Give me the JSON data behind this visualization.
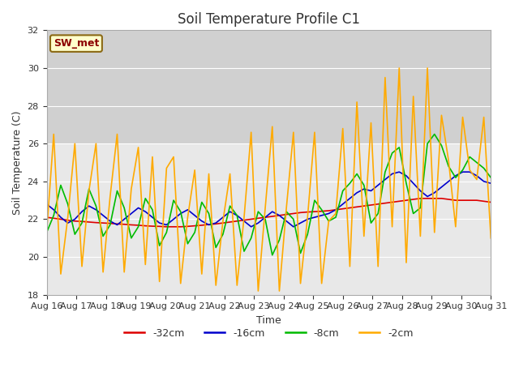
{
  "title": "Soil Temperature Profile C1",
  "xlabel": "Time",
  "ylabel": "Soil Temperature (C)",
  "ylim": [
    18,
    32
  ],
  "yticks": [
    18,
    20,
    22,
    24,
    26,
    28,
    30,
    32
  ],
  "legend_label": "SW_met",
  "series_labels": [
    "-32cm",
    "-16cm",
    "-8cm",
    "-2cm"
  ],
  "series_colors": [
    "#dd0000",
    "#0000cc",
    "#00bb00",
    "#ffaa00"
  ],
  "fig_bg_color": "#ffffff",
  "plot_bg_color": "#e8e8e8",
  "shade_band_color": "#d0d0d0",
  "shade_band_lo": 26,
  "shade_band_hi": 32,
  "title_fontsize": 12,
  "axis_fontsize": 9,
  "tick_fontsize": 8,
  "x_labels": [
    "Aug 16",
    "Aug 17",
    "Aug 18",
    "Aug 19",
    "Aug 20",
    "Aug 21",
    "Aug 22",
    "Aug 23",
    "Aug 24",
    "Aug 25",
    "Aug 26",
    "Aug 27",
    "Aug 28",
    "Aug 29",
    "Aug 30",
    "Aug 31"
  ],
  "t_d32": [
    22.1,
    22.05,
    22.0,
    21.95,
    21.9,
    21.88,
    21.85,
    21.82,
    21.8,
    21.78,
    21.75,
    21.73,
    21.7,
    21.68,
    21.65,
    21.63,
    21.62,
    21.6,
    21.6,
    21.6,
    21.62,
    21.65,
    21.68,
    21.72,
    21.75,
    21.8,
    21.85,
    21.9,
    21.95,
    22.0,
    22.05,
    22.1,
    22.15,
    22.2,
    22.25,
    22.3,
    22.35,
    22.38,
    22.4,
    22.42,
    22.45,
    22.5,
    22.55,
    22.6,
    22.65,
    22.7,
    22.75,
    22.8,
    22.85,
    22.9,
    22.95,
    23.0,
    23.05,
    23.1,
    23.1,
    23.1,
    23.1,
    23.05,
    23.0,
    23.0,
    23.0,
    23.0,
    22.95,
    22.9
  ],
  "t_d16": [
    22.8,
    22.5,
    22.1,
    21.8,
    22.0,
    22.4,
    22.7,
    22.5,
    22.2,
    21.9,
    21.7,
    22.0,
    22.3,
    22.6,
    22.4,
    22.1,
    21.8,
    21.7,
    22.0,
    22.3,
    22.5,
    22.2,
    21.9,
    21.7,
    21.8,
    22.1,
    22.4,
    22.2,
    21.9,
    21.6,
    21.8,
    22.1,
    22.4,
    22.2,
    21.9,
    21.6,
    21.8,
    22.0,
    22.1,
    22.2,
    22.3,
    22.5,
    22.8,
    23.1,
    23.4,
    23.6,
    23.5,
    23.8,
    24.1,
    24.4,
    24.5,
    24.3,
    23.9,
    23.5,
    23.2,
    23.4,
    23.7,
    24.0,
    24.3,
    24.5,
    24.5,
    24.3,
    24.0,
    23.9
  ],
  "t_d8": [
    21.3,
    22.2,
    23.8,
    22.8,
    21.2,
    21.8,
    23.6,
    22.7,
    21.1,
    21.7,
    23.5,
    22.6,
    21.0,
    21.6,
    23.1,
    22.5,
    20.6,
    21.3,
    23.0,
    22.4,
    20.7,
    21.3,
    22.9,
    22.3,
    20.5,
    21.2,
    22.7,
    22.2,
    20.3,
    21.0,
    22.4,
    22.0,
    20.1,
    20.9,
    22.4,
    22.0,
    20.2,
    21.2,
    23.0,
    22.5,
    21.9,
    22.1,
    23.5,
    23.9,
    24.4,
    23.8,
    21.8,
    22.3,
    24.5,
    25.5,
    25.8,
    23.9,
    22.3,
    22.6,
    26.0,
    26.5,
    25.9,
    24.8,
    24.2,
    24.6,
    25.3,
    25.0,
    24.7,
    24.2
  ],
  "t_d2": [
    21.3,
    26.5,
    19.1,
    22.1,
    26.0,
    19.5,
    23.5,
    26.0,
    19.2,
    23.2,
    26.5,
    19.2,
    23.6,
    25.8,
    19.6,
    25.3,
    18.7,
    24.7,
    25.3,
    18.6,
    22.1,
    24.6,
    19.1,
    24.4,
    18.5,
    21.9,
    24.4,
    18.5,
    22.1,
    26.6,
    18.2,
    22.6,
    26.9,
    18.2,
    22.6,
    26.6,
    18.6,
    22.1,
    26.6,
    18.6,
    21.9,
    22.3,
    26.8,
    19.5,
    28.2,
    21.1,
    27.1,
    19.5,
    29.5,
    21.6,
    30.0,
    19.7,
    28.5,
    21.1,
    30.0,
    21.3,
    27.5,
    25.1,
    21.6,
    27.4,
    24.6,
    24.1,
    27.4,
    21.0
  ]
}
